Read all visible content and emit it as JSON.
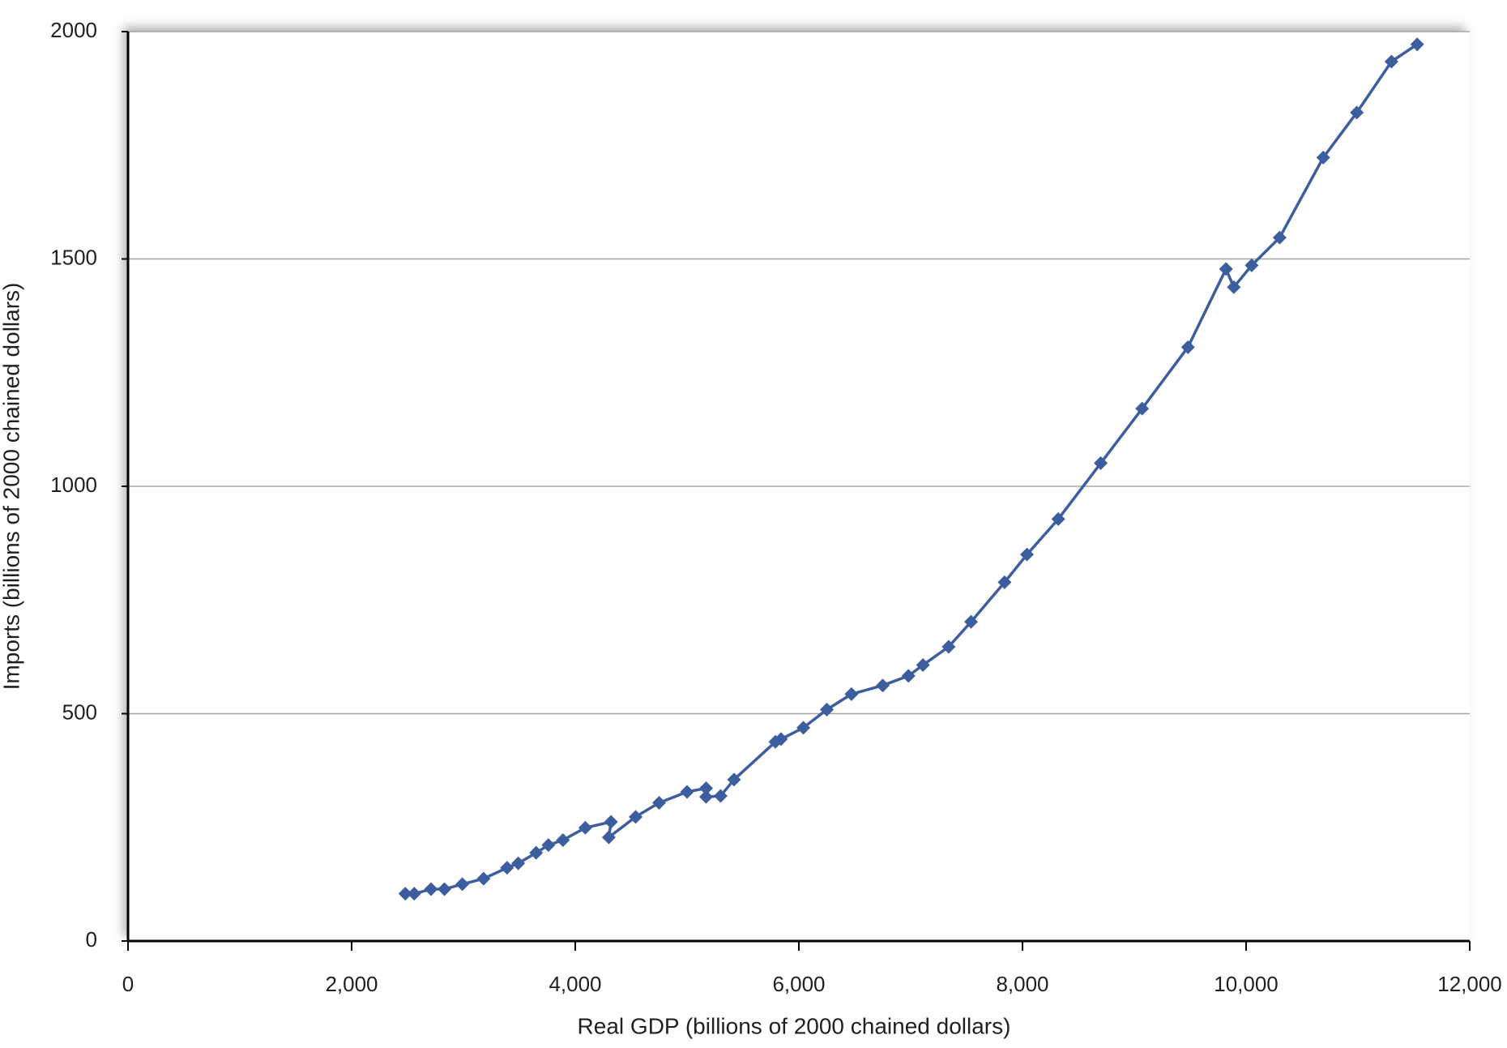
{
  "chart_data": {
    "type": "line",
    "x_label": "Real GDP (billions of 2000 chained dollars)",
    "y_label": "Imports (billions of 2000 chained dollars)",
    "x": [
      2480,
      2560,
      2710,
      2830,
      2990,
      3180,
      3390,
      3490,
      3650,
      3760,
      3890,
      4090,
      4320,
      4300,
      4540,
      4750,
      5000,
      5170,
      5170,
      5300,
      5420,
      5790,
      5840,
      6040,
      6250,
      6470,
      6750,
      6980,
      7110,
      7340,
      7540,
      7840,
      8040,
      8320,
      8700,
      9070,
      9480,
      9820,
      9890,
      10050,
      10300,
      10690,
      10990,
      11300,
      11530
    ],
    "series": [
      {
        "color": "#3d5e9e",
        "values": [
          104,
          104,
          114,
          114,
          125,
          137,
          161,
          171,
          194,
          211,
          222,
          249,
          262,
          228,
          273,
          304,
          328,
          336,
          317,
          319,
          355,
          438,
          444,
          469,
          509,
          543,
          562,
          583,
          607,
          647,
          702,
          789,
          850,
          928,
          1051,
          1171,
          1306,
          1478,
          1438,
          1486,
          1547,
          1723,
          1822,
          1934,
          1972
        ]
      }
    ],
    "xlim": [
      0,
      12000
    ],
    "ylim": [
      0,
      2000
    ],
    "xticks": [
      0,
      {
        "value": 2000,
        "label": "2,000"
      },
      {
        "value": 4000,
        "label": "4,000"
      },
      {
        "value": 6000,
        "label": "6,000"
      },
      {
        "value": 8000,
        "label": "8,000"
      },
      {
        "value": 10000,
        "label": "10,000"
      },
      {
        "value": 12000,
        "label": "12,000"
      }
    ],
    "yticks": [
      0,
      500,
      1000,
      1500,
      2000
    ],
    "grid": true
  }
}
